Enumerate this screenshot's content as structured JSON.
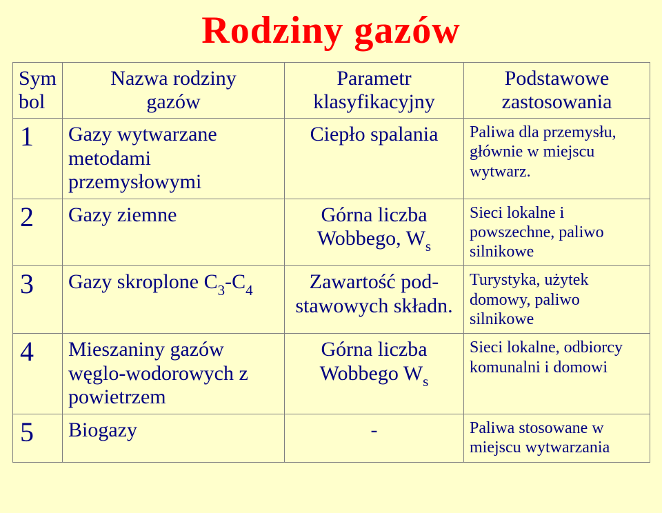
{
  "title": "Rodziny gazów",
  "headers": {
    "sym_l1": "Sym",
    "sym_l2": "bol",
    "name_l1": "Nazwa rodziny",
    "name_l2": "gazów",
    "param_l1": "Parametr",
    "param_l2": "klasyfikacyjny",
    "app_l1": "Podstawowe",
    "app_l2": "zastosowania"
  },
  "rows": {
    "r1": {
      "sym": "1",
      "name": "Gazy wytwarzane metodami przemysłowymi",
      "param": "Ciepło spalania",
      "app": "Paliwa dla przemysłu, głównie w miejscu wytwarz."
    },
    "r2": {
      "sym": "2",
      "name": "Gazy ziemne",
      "param_l1": "Górna liczba",
      "param_l2a": "Wobbego, W",
      "param_l2b": "s",
      "app": "Sieci lokalne i powszechne, paliwo silnikowe"
    },
    "r3": {
      "sym": "3",
      "name_a": "Gazy skroplone C",
      "name_b": "3",
      "name_c": "-C",
      "name_d": "4",
      "param": "Zawartość pod-stawowych składn.",
      "app": "Turystyka, użytek domowy, paliwo silnikowe"
    },
    "r4": {
      "sym": "4",
      "name": "Mieszaniny gazów węglo-wodorowych z powietrzem",
      "param_l1": "Górna liczba",
      "param_l2a": "Wobbego W",
      "param_l2b": "s",
      "app": "Sieci lokalne, odbiorcy komunalni i domowi"
    },
    "r5": {
      "sym": "5",
      "name": "Biogazy",
      "param": "-",
      "app": "Paliwa stosowane w miejscu wytwarzania"
    }
  },
  "colors": {
    "background": "#ffffcc",
    "title": "#ff0000",
    "text": "#000080",
    "border": "#808080"
  }
}
